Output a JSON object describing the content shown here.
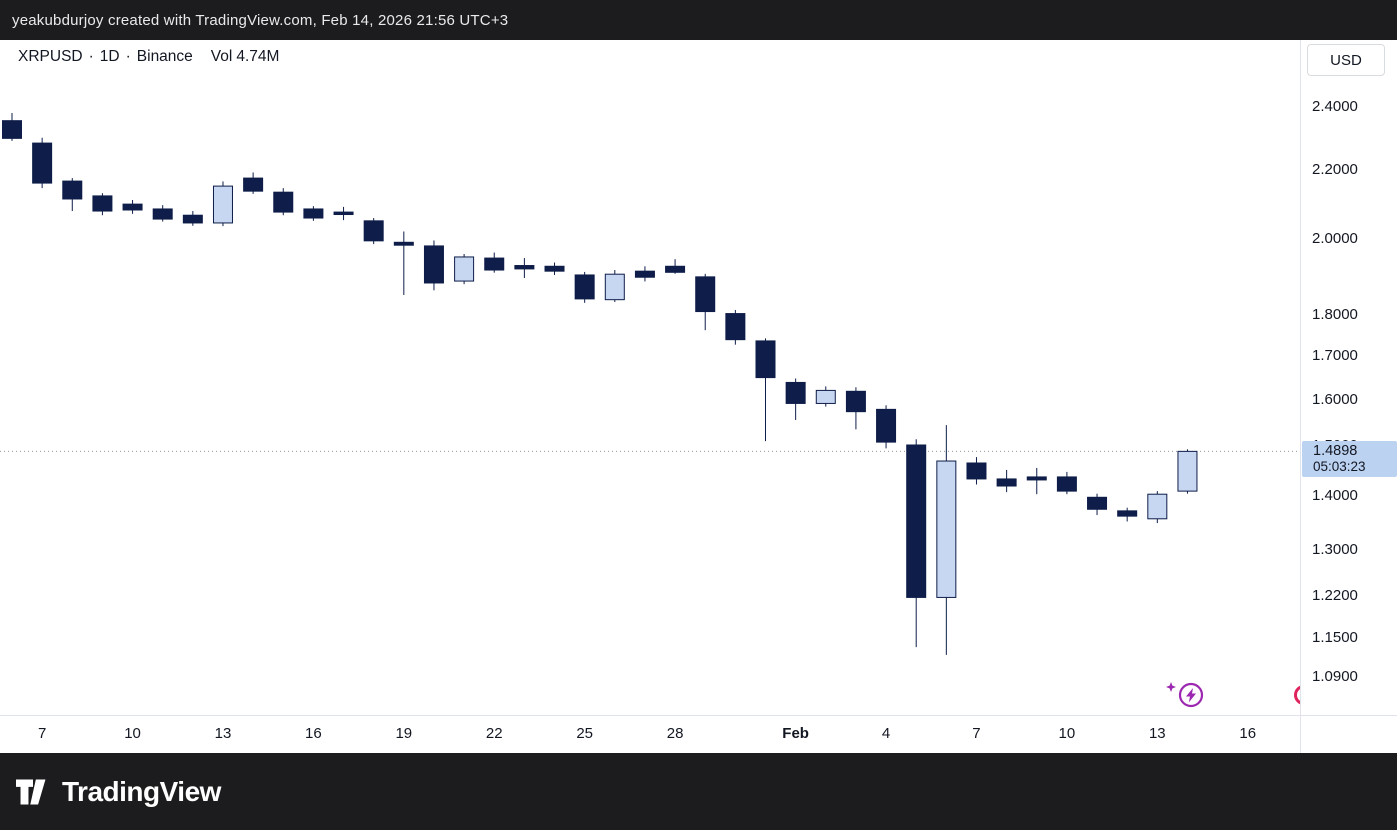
{
  "top_bar": {
    "attribution": "yeakubdurjoy created with TradingView.com, Feb 14, 2026 21:56 UTC+3"
  },
  "legend": {
    "symbol": "XRPUSD",
    "separator": "·",
    "interval": "1D",
    "exchange": "Binance",
    "volume_label": "Vol",
    "volume_value": "4.74M"
  },
  "price_axis": {
    "currency_button": "USD",
    "ticks": [
      {
        "label": "2.4000",
        "price": 2.4
      },
      {
        "label": "2.2000",
        "price": 2.2
      },
      {
        "label": "2.0000",
        "price": 2.0
      },
      {
        "label": "1.8000",
        "price": 1.8
      },
      {
        "label": "1.7000",
        "price": 1.7
      },
      {
        "label": "1.6000",
        "price": 1.6
      },
      {
        "label": "1.5000",
        "price": 1.5
      },
      {
        "label": "1.4000",
        "price": 1.4
      },
      {
        "label": "1.3000",
        "price": 1.3
      },
      {
        "label": "1.2200",
        "price": 1.22
      },
      {
        "label": "1.1500",
        "price": 1.15
      },
      {
        "label": "1.0900",
        "price": 1.09
      }
    ],
    "last_price": {
      "price": "1.4898",
      "countdown": "05:03:23"
    }
  },
  "time_axis": {
    "ticks": [
      {
        "label": "7",
        "idx": 1
      },
      {
        "label": "10",
        "idx": 4
      },
      {
        "label": "13",
        "idx": 7
      },
      {
        "label": "16",
        "idx": 10
      },
      {
        "label": "19",
        "idx": 13
      },
      {
        "label": "22",
        "idx": 16
      },
      {
        "label": "25",
        "idx": 19
      },
      {
        "label": "28",
        "idx": 22
      },
      {
        "label": "Feb",
        "idx": 26,
        "emph": true
      },
      {
        "label": "4",
        "idx": 29
      },
      {
        "label": "7",
        "idx": 32
      },
      {
        "label": "10",
        "idx": 35
      },
      {
        "label": "13",
        "idx": 38
      },
      {
        "label": "16",
        "idx": 41
      }
    ]
  },
  "footer": {
    "brand": "TradingView"
  },
  "colors": {
    "candle_up": "#c7d7f2",
    "candle_down": "#0e1d49",
    "last_price_badge_bg": "#bcd2f1",
    "last_price_line": "#9598a1",
    "idea_marker_purple": "#9c27b0",
    "edge_marker_red": "#e0245e",
    "axis_text": "#131722",
    "dark_bar_bg": "#1c1c1e"
  },
  "chart_data": {
    "type": "candlestick",
    "title": "XRPUSD · 1D · Binance",
    "symbol": "XRPUSD",
    "interval": "1D",
    "exchange": "Binance",
    "volume": "4.74M",
    "scale": "log",
    "ylim": [
      1.03,
      2.63
    ],
    "grid": false,
    "last_price": 1.4898,
    "countdown": "05:03:23",
    "up_color": "#c7d7f2",
    "down_color": "#0e1d49",
    "candles": [
      {
        "date": "Jan 6",
        "o": 2.355,
        "h": 2.38,
        "l": 2.29,
        "c": 2.298
      },
      {
        "date": "Jan 7",
        "o": 2.283,
        "h": 2.3,
        "l": 2.145,
        "c": 2.16
      },
      {
        "date": "Jan 8",
        "o": 2.166,
        "h": 2.175,
        "l": 2.078,
        "c": 2.113
      },
      {
        "date": "Jan 9",
        "o": 2.122,
        "h": 2.13,
        "l": 2.066,
        "c": 2.078
      },
      {
        "date": "Jan 10",
        "o": 2.098,
        "h": 2.11,
        "l": 2.07,
        "c": 2.081
      },
      {
        "date": "Jan 11",
        "o": 2.084,
        "h": 2.095,
        "l": 2.048,
        "c": 2.055
      },
      {
        "date": "Jan 12",
        "o": 2.066,
        "h": 2.078,
        "l": 2.036,
        "c": 2.044
      },
      {
        "date": "Jan 13",
        "o": 2.044,
        "h": 2.165,
        "l": 2.035,
        "c": 2.151
      },
      {
        "date": "Jan 14",
        "o": 2.175,
        "h": 2.192,
        "l": 2.128,
        "c": 2.136
      },
      {
        "date": "Jan 15",
        "o": 2.133,
        "h": 2.145,
        "l": 2.066,
        "c": 2.075
      },
      {
        "date": "Jan 16",
        "o": 2.084,
        "h": 2.092,
        "l": 2.05,
        "c": 2.058
      },
      {
        "date": "Jan 17",
        "o": 2.075,
        "h": 2.09,
        "l": 2.052,
        "c": 2.068
      },
      {
        "date": "Jan 18",
        "o": 2.05,
        "h": 2.058,
        "l": 1.985,
        "c": 1.994
      },
      {
        "date": "Jan 19",
        "o": 1.99,
        "h": 2.02,
        "l": 1.85,
        "c": 1.982
      },
      {
        "date": "Jan 20",
        "o": 1.98,
        "h": 1.995,
        "l": 1.862,
        "c": 1.881
      },
      {
        "date": "Jan 21",
        "o": 1.886,
        "h": 1.958,
        "l": 1.878,
        "c": 1.95
      },
      {
        "date": "Jan 22",
        "o": 1.947,
        "h": 1.962,
        "l": 1.908,
        "c": 1.915
      },
      {
        "date": "Jan 23",
        "o": 1.927,
        "h": 1.947,
        "l": 1.894,
        "c": 1.918
      },
      {
        "date": "Jan 24",
        "o": 1.925,
        "h": 1.935,
        "l": 1.902,
        "c": 1.912
      },
      {
        "date": "Jan 25",
        "o": 1.902,
        "h": 1.91,
        "l": 1.83,
        "c": 1.84
      },
      {
        "date": "Jan 26",
        "o": 1.838,
        "h": 1.915,
        "l": 1.832,
        "c": 1.904
      },
      {
        "date": "Jan 27",
        "o": 1.912,
        "h": 1.925,
        "l": 1.885,
        "c": 1.896
      },
      {
        "date": "Jan 28",
        "o": 1.925,
        "h": 1.944,
        "l": 1.905,
        "c": 1.909
      },
      {
        "date": "Jan 29",
        "o": 1.897,
        "h": 1.905,
        "l": 1.762,
        "c": 1.808
      },
      {
        "date": "Jan 30",
        "o": 1.803,
        "h": 1.812,
        "l": 1.727,
        "c": 1.739
      },
      {
        "date": "Jan 31",
        "o": 1.736,
        "h": 1.742,
        "l": 1.511,
        "c": 1.65
      },
      {
        "date": "Feb 1",
        "o": 1.639,
        "h": 1.648,
        "l": 1.556,
        "c": 1.592
      },
      {
        "date": "Feb 2",
        "o": 1.592,
        "h": 1.63,
        "l": 1.585,
        "c": 1.621
      },
      {
        "date": "Feb 3",
        "o": 1.619,
        "h": 1.628,
        "l": 1.536,
        "c": 1.574
      },
      {
        "date": "Feb 4",
        "o": 1.579,
        "h": 1.588,
        "l": 1.496,
        "c": 1.509
      },
      {
        "date": "Feb 5",
        "o": 1.503,
        "h": 1.515,
        "l": 1.136,
        "c": 1.217
      },
      {
        "date": "Feb 6",
        "o": 1.217,
        "h": 1.545,
        "l": 1.124,
        "c": 1.47
      },
      {
        "date": "Feb 7",
        "o": 1.466,
        "h": 1.478,
        "l": 1.423,
        "c": 1.434
      },
      {
        "date": "Feb 8",
        "o": 1.434,
        "h": 1.452,
        "l": 1.408,
        "c": 1.42
      },
      {
        "date": "Feb 9",
        "o": 1.438,
        "h": 1.456,
        "l": 1.404,
        "c": 1.432
      },
      {
        "date": "Feb 10",
        "o": 1.438,
        "h": 1.448,
        "l": 1.404,
        "c": 1.41
      },
      {
        "date": "Feb 11",
        "o": 1.398,
        "h": 1.405,
        "l": 1.364,
        "c": 1.375
      },
      {
        "date": "Feb 12",
        "o": 1.372,
        "h": 1.378,
        "l": 1.352,
        "c": 1.362
      },
      {
        "date": "Feb 13",
        "o": 1.357,
        "h": 1.41,
        "l": 1.349,
        "c": 1.404
      },
      {
        "date": "Feb 14",
        "o": 1.41,
        "h": 1.494,
        "l": 1.405,
        "c": 1.4898
      }
    ]
  }
}
